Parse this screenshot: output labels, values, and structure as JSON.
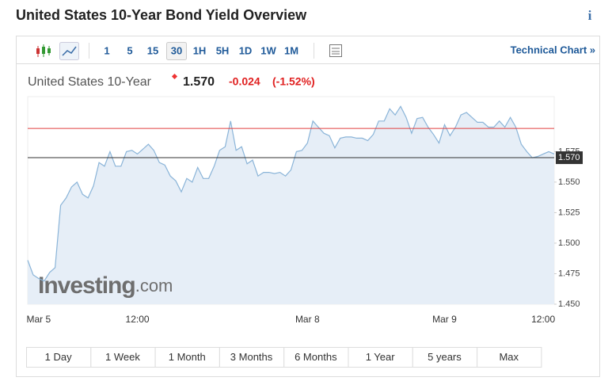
{
  "header": {
    "title": "United States 10-Year Bond Yield Overview",
    "info": "i"
  },
  "toolbar": {
    "intervals": [
      "1",
      "5",
      "15",
      "30",
      "1H",
      "5H",
      "1D",
      "1W",
      "1M"
    ],
    "selected": "30",
    "technical_chart": "Technical Chart »"
  },
  "quote": {
    "name": "United States 10-Year",
    "price": "1.570",
    "change": "-0.024",
    "change_percent": "(-1.52%)"
  },
  "chart_data": {
    "type": "area",
    "color": "#8ab4d8",
    "fill": "#e6eef7",
    "categories": [
      null,
      null,
      "Mar 5",
      null,
      null,
      null,
      null,
      null,
      null,
      null,
      null,
      null,
      null,
      null,
      null,
      null,
      null,
      null,
      null,
      null,
      "12:00",
      null,
      null,
      null,
      null,
      null,
      null,
      null,
      null,
      null,
      null,
      null,
      null,
      null,
      null,
      null,
      null,
      null,
      null,
      null,
      null,
      null,
      null,
      null,
      null,
      null,
      null,
      null,
      null,
      null,
      null,
      "Mar 8",
      null,
      null,
      null,
      null,
      null,
      null,
      null,
      null,
      null,
      null,
      null,
      null,
      null,
      null,
      null,
      null,
      null,
      null,
      null,
      null,
      null,
      null,
      null,
      null,
      "Mar 9",
      null,
      null,
      null,
      null,
      null,
      null,
      null,
      null,
      null,
      null,
      null,
      null,
      null,
      null,
      null,
      null,
      null,
      "12:00",
      null,
      null
    ],
    "values": [
      1.486,
      1.474,
      1.471,
      1.469,
      1.476,
      1.48,
      1.531,
      1.537,
      1.546,
      1.55,
      1.54,
      1.537,
      1.547,
      1.566,
      1.563,
      1.575,
      1.563,
      1.563,
      1.575,
      1.576,
      1.573,
      1.577,
      1.581,
      1.576,
      1.566,
      1.564,
      1.555,
      1.551,
      1.542,
      1.553,
      1.55,
      1.562,
      1.553,
      1.553,
      1.563,
      1.576,
      1.579,
      1.6,
      1.576,
      1.579,
      1.565,
      1.568,
      1.555,
      1.558,
      1.558,
      1.557,
      1.558,
      1.555,
      1.56,
      1.575,
      1.576,
      1.582,
      1.6,
      1.595,
      1.59,
      1.588,
      1.578,
      1.586,
      1.587,
      1.587,
      1.586,
      1.586,
      1.584,
      1.589,
      1.6,
      1.6,
      1.61,
      1.605,
      1.612,
      1.603,
      1.59,
      1.602,
      1.603,
      1.595,
      1.589,
      1.582,
      1.597,
      1.588,
      1.595,
      1.605,
      1.607,
      1.603,
      1.599,
      1.599,
      1.595,
      1.595,
      1.6,
      1.595,
      1.603,
      1.595,
      1.581,
      1.575,
      1.57,
      1.571,
      1.573,
      1.575,
      1.573
    ],
    "ylim": [
      1.45,
      1.62
    ],
    "yticks": [
      {
        "value": 1.45,
        "label": "1.450"
      },
      {
        "value": 1.475,
        "label": "1.475"
      },
      {
        "value": 1.5,
        "label": "1.500"
      },
      {
        "value": 1.525,
        "label": "1.525"
      },
      {
        "value": 1.55,
        "label": "1.550"
      },
      {
        "value": 1.575,
        "label": "1.575"
      }
    ],
    "reference_line": {
      "value": 1.594,
      "color": "#e04040"
    },
    "price_line": {
      "value": 1.57,
      "label": "1.570",
      "color": "#333333"
    },
    "watermark": {
      "brand": "Investing",
      "suffix": ".com"
    }
  },
  "ranges": [
    "1 Day",
    "1 Week",
    "1 Month",
    "3 Months",
    "6 Months",
    "1 Year",
    "5 years",
    "Max"
  ]
}
